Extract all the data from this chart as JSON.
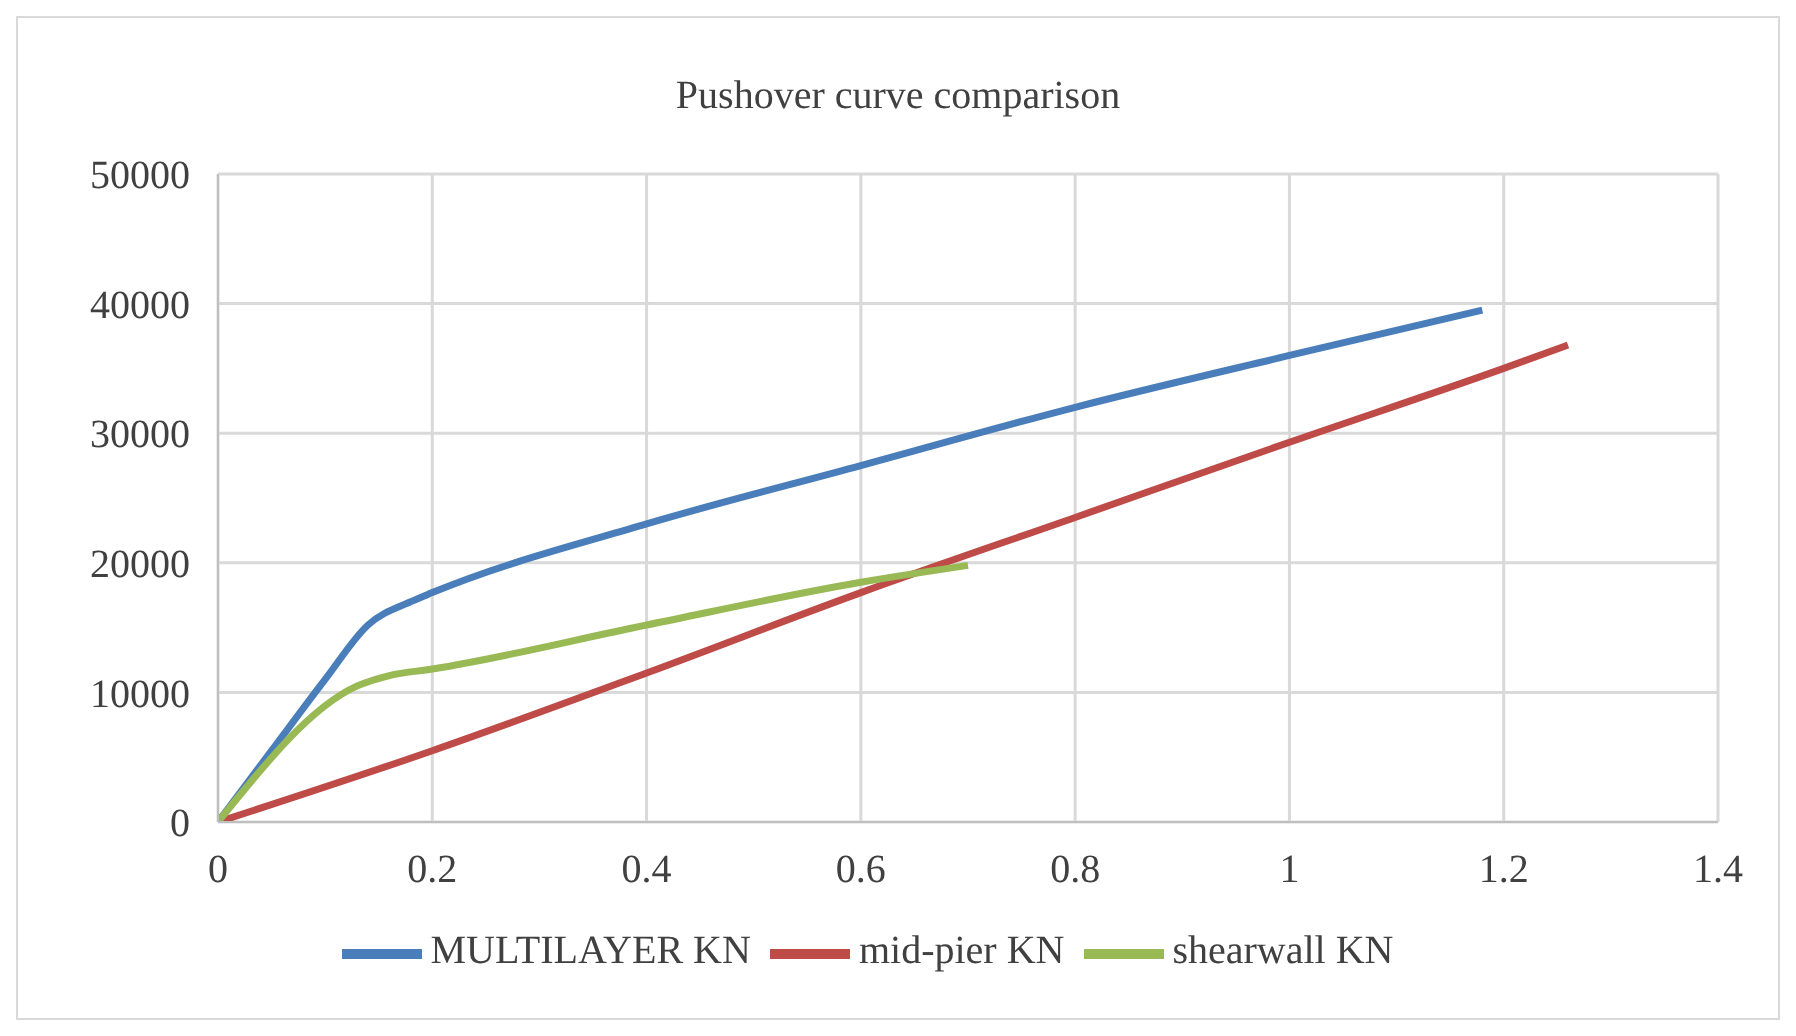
{
  "chart_data": {
    "type": "line",
    "title": "Pushover curve comparison",
    "xlim": [
      0,
      1.4
    ],
    "xticks": [
      0,
      0.2,
      0.4,
      0.6,
      0.8,
      1,
      1.2,
      1.4
    ],
    "ylim": [
      0,
      50000
    ],
    "yticks": [
      0,
      10000,
      20000,
      30000,
      40000,
      50000
    ],
    "grid": true,
    "legend": "bottom",
    "marker": "none",
    "line_style": "solid",
    "series": [
      {
        "name": "MULTILAYER KN",
        "color": "#4a7ebb",
        "x": [
          0,
          0.05,
          0.1,
          0.14,
          0.18,
          0.2,
          0.4,
          0.6,
          0.8,
          1.0,
          1.18
        ],
        "values": [
          0,
          5500,
          11000,
          15200,
          17000,
          17700,
          23000,
          27500,
          32000,
          36000,
          39500
        ]
      },
      {
        "name": "mid-pier KN",
        "color": "#be4b48",
        "x": [
          0,
          0.2,
          0.4,
          0.6,
          0.8,
          1.0,
          1.2,
          1.26
        ],
        "values": [
          0,
          5500,
          11500,
          17700,
          23500,
          29300,
          35000,
          36800
        ]
      },
      {
        "name": "shearwall KN",
        "color": "#98b954",
        "x": [
          0,
          0.13,
          0.16,
          0.2,
          0.4,
          0.6,
          0.7
        ],
        "values": [
          0,
          10500,
          11300,
          11800,
          15200,
          18500,
          19800
        ]
      }
    ]
  }
}
